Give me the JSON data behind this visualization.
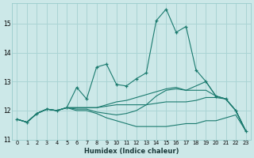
{
  "title": "",
  "xlabel": "Humidex (Indice chaleur)",
  "ylabel": "",
  "bg_color": "#cce8e8",
  "grid_color": "#aad4d4",
  "line_color": "#1a7a6e",
  "xlim": [
    -0.5,
    23.5
  ],
  "ylim": [
    11.0,
    15.7
  ],
  "yticks": [
    11,
    12,
    13,
    14,
    15
  ],
  "xticks": [
    0,
    1,
    2,
    3,
    4,
    5,
    6,
    7,
    8,
    9,
    10,
    11,
    12,
    13,
    14,
    15,
    16,
    17,
    18,
    19,
    20,
    21,
    22,
    23
  ],
  "series": [
    [
      11.7,
      11.6,
      11.9,
      12.05,
      12.0,
      12.1,
      12.8,
      12.4,
      13.5,
      13.6,
      12.9,
      12.85,
      13.1,
      13.3,
      15.1,
      15.5,
      14.7,
      14.9,
      13.4,
      13.0,
      12.5,
      12.4,
      12.0,
      11.3
    ],
    [
      11.7,
      11.6,
      11.9,
      12.05,
      12.0,
      12.1,
      12.05,
      12.05,
      11.95,
      11.9,
      11.85,
      11.9,
      12.0,
      12.2,
      12.5,
      12.7,
      12.75,
      12.7,
      12.85,
      13.0,
      12.5,
      12.4,
      12.0,
      11.3
    ],
    [
      11.7,
      11.6,
      11.9,
      12.05,
      12.0,
      12.1,
      12.1,
      12.1,
      12.1,
      12.2,
      12.3,
      12.35,
      12.45,
      12.55,
      12.65,
      12.75,
      12.8,
      12.7,
      12.7,
      12.7,
      12.5,
      12.4,
      12.0,
      11.3
    ],
    [
      11.7,
      11.6,
      11.9,
      12.05,
      12.0,
      12.1,
      12.1,
      12.1,
      12.1,
      12.15,
      12.2,
      12.2,
      12.2,
      12.2,
      12.25,
      12.3,
      12.3,
      12.3,
      12.35,
      12.45,
      12.45,
      12.4,
      12.0,
      11.3
    ],
    [
      11.7,
      11.6,
      11.9,
      12.05,
      12.0,
      12.1,
      12.0,
      12.0,
      11.9,
      11.75,
      11.65,
      11.55,
      11.45,
      11.45,
      11.45,
      11.45,
      11.5,
      11.55,
      11.55,
      11.65,
      11.65,
      11.75,
      11.85,
      11.3
    ]
  ]
}
